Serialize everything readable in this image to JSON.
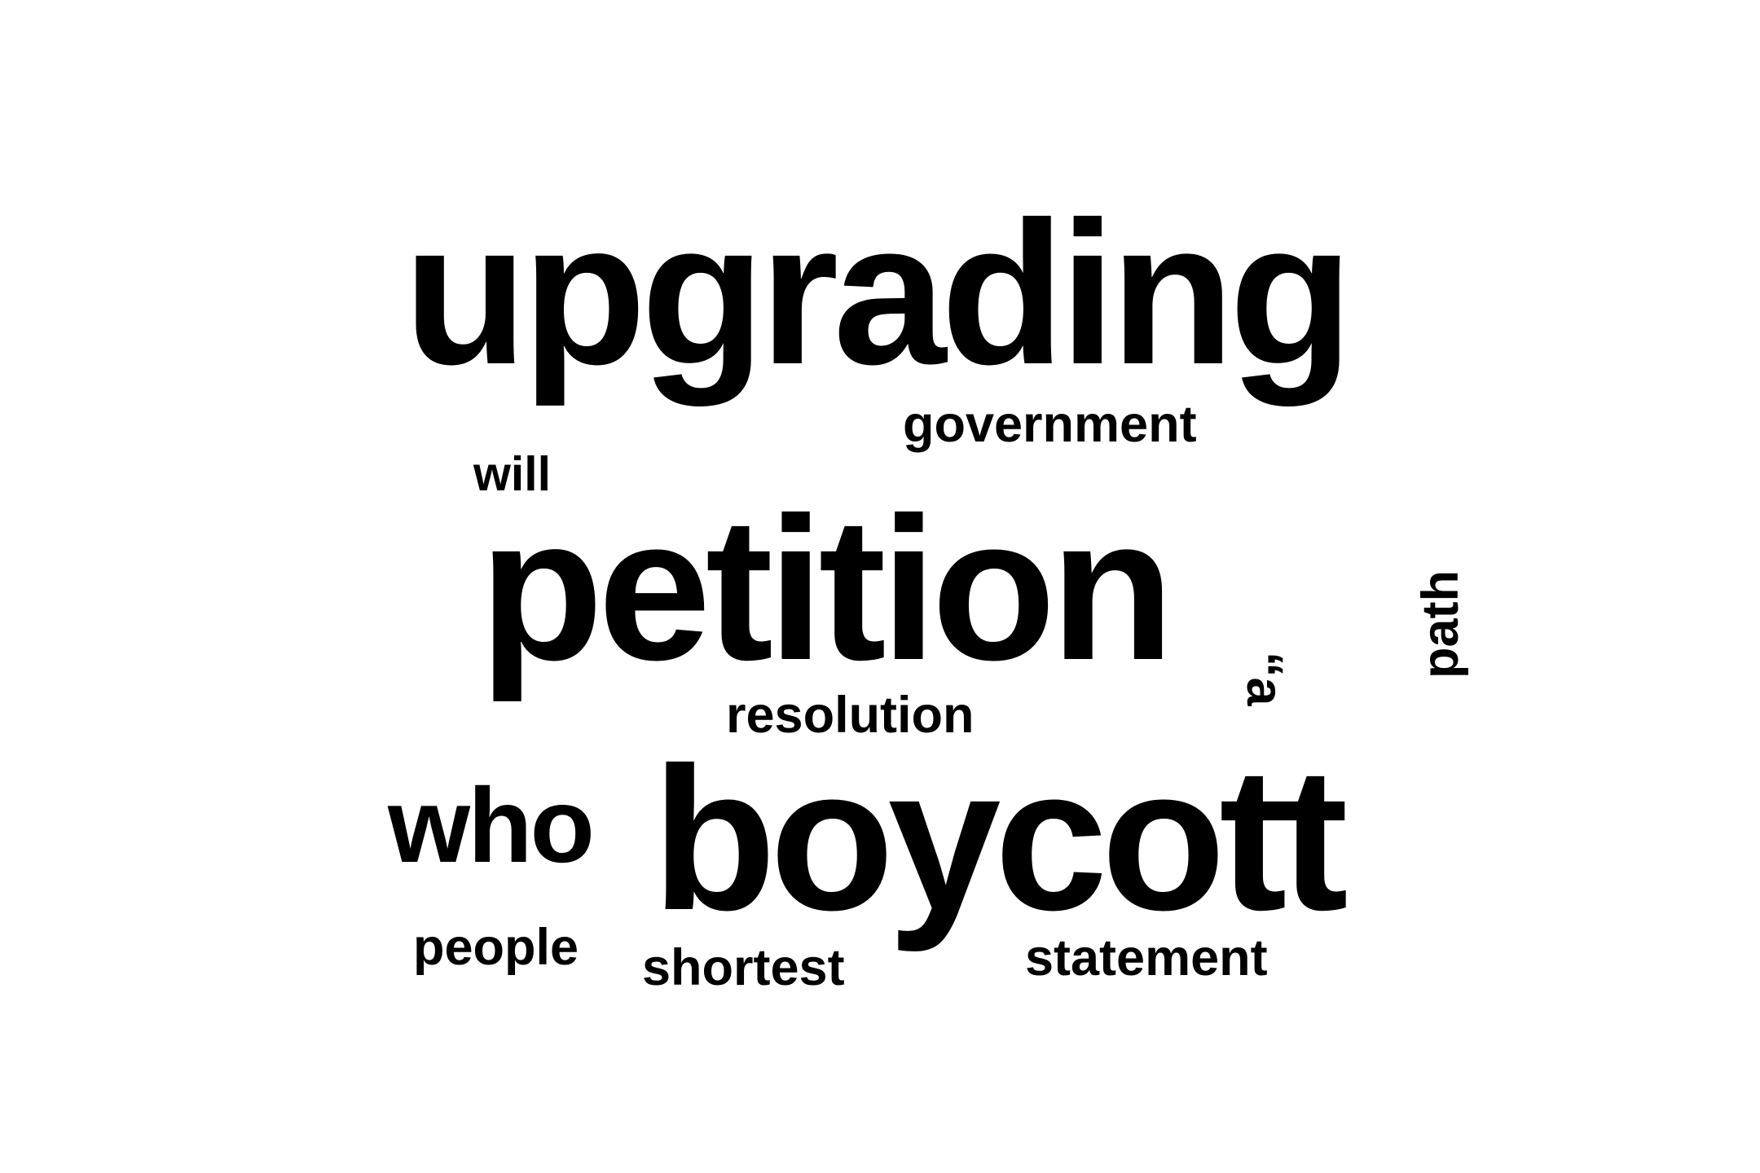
{
  "word_cloud": {
    "words": [
      {
        "text": "upgrading"
      },
      {
        "text": "government"
      },
      {
        "text": "will"
      },
      {
        "text": "petition"
      },
      {
        "text": "“a"
      },
      {
        "text": "path"
      },
      {
        "text": "resolution"
      },
      {
        "text": "who"
      },
      {
        "text": "boycott"
      },
      {
        "text": "people"
      },
      {
        "text": "shortest"
      },
      {
        "text": "statement"
      }
    ]
  }
}
